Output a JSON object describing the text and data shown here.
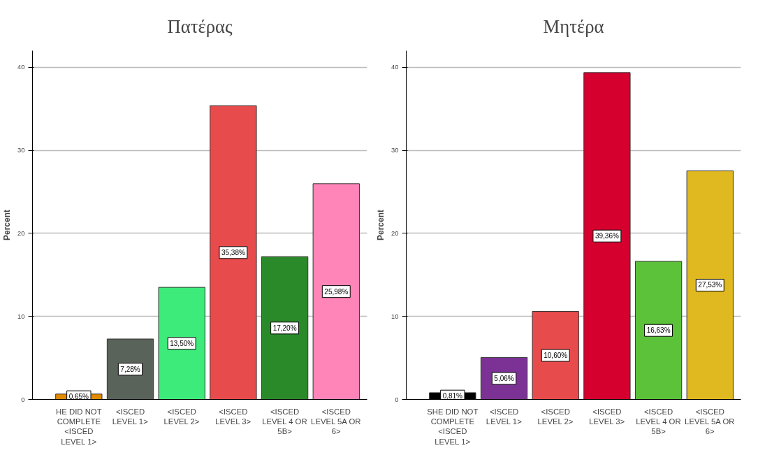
{
  "chart_data": [
    {
      "type": "bar",
      "title": "Πατέρας",
      "ylabel": "Percent",
      "categories": [
        "HE DID NOT COMPLETE <ISCED LEVEL 1>",
        "<ISCED LEVEL 1>",
        "<ISCED LEVEL 2>",
        "<ISCED LEVEL 3>",
        "<ISCED LEVEL 4 OR 5B>",
        "<ISCED LEVEL 5A OR 6>"
      ],
      "values": [
        0.65,
        7.28,
        13.5,
        35.38,
        17.2,
        25.98
      ],
      "value_labels": [
        "0,65%",
        "7,28%",
        "13,50%",
        "35,38%",
        "17,20%",
        "25,98%"
      ],
      "colors": [
        "#e08a00",
        "#5a6359",
        "#3deb7a",
        "#e84b4b",
        "#2a8a2a",
        "#ff85b8"
      ],
      "ylim": [
        0,
        42
      ],
      "yticks": [
        0,
        10,
        20,
        30,
        40
      ],
      "grid": "y"
    },
    {
      "type": "bar",
      "title": "Μητέρα",
      "ylabel": "Percent",
      "categories": [
        "SHE DID NOT COMPLETE <ISCED LEVEL 1>",
        "<ISCED LEVEL 1>",
        "<ISCED LEVEL 2>",
        "<ISCED LEVEL 3>",
        "<ISCED LEVEL 4 OR 5B>",
        "<ISCED LEVEL 5A OR 6>"
      ],
      "values": [
        0.81,
        5.06,
        10.6,
        39.36,
        16.63,
        27.53
      ],
      "value_labels": [
        "0,81%",
        "5,06%",
        "10,60%",
        "39,36%",
        "16,63%",
        "27,53%"
      ],
      "colors": [
        "#000000",
        "#7b3294",
        "#e84b4b",
        "#d6002f",
        "#5cc23a",
        "#e0b820"
      ],
      "ylim": [
        0,
        42
      ],
      "yticks": [
        0,
        10,
        20,
        30,
        40
      ],
      "grid": "y"
    }
  ]
}
